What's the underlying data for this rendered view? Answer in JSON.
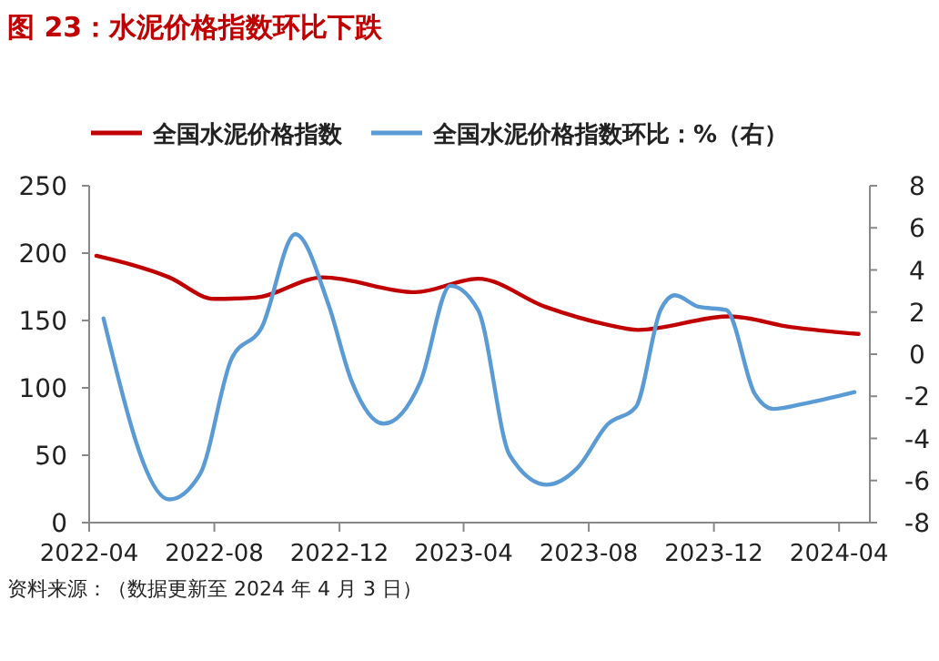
{
  "chart_data": {
    "type": "line",
    "title": "图 23：水泥价格指数环比下跌",
    "annotations": [
      "资料来源：（数据更新至 2024 年 4 月 3 日）"
    ],
    "xlim": [
      "2022-04-01",
      "2024-05-01"
    ],
    "xticks": [
      {
        "value": "2022-04",
        "label": "2022-04"
      },
      {
        "value": "2022-08",
        "label": "2022-08"
      },
      {
        "value": "2022-12",
        "label": "2022-12"
      },
      {
        "value": "2023-04",
        "label": "2023-04"
      },
      {
        "value": "2023-08",
        "label": "2023-08"
      },
      {
        "value": "2023-12",
        "label": "2023-12"
      },
      {
        "value": "2024-04",
        "label": "2024-04"
      }
    ],
    "ylim": [
      0,
      250
    ],
    "yticks": [
      0,
      50,
      100,
      150,
      200,
      250
    ],
    "y2lim": [
      -8,
      8
    ],
    "y2ticks": [
      -8,
      -6,
      -4,
      -2,
      0,
      2,
      4,
      6,
      8
    ],
    "legend": "top",
    "grid": false,
    "marker": "none",
    "line_style": "solid",
    "series": [
      {
        "name": "全国水泥价格指数",
        "color": "#c00000",
        "x": [
          "2022-04-08",
          "2022-06-18",
          "2022-08-01",
          "2022-09-10",
          "2022-11-15",
          "2023-02-13",
          "2023-04-15",
          "2023-06-20",
          "2023-08-18",
          "2023-09-18",
          "2023-12-16",
          "2024-02-15",
          "2024-04-20"
        ],
        "values": [
          198,
          182,
          166,
          167,
          182,
          171,
          181,
          160,
          147,
          143,
          153,
          145,
          140
        ]
      },
      {
        "name": "全国水泥价格指数环比：%（右）",
        "color": "#5b9bd5",
        "axis": "y2",
        "x": [
          "2022-04-15",
          "2022-06-18",
          "2022-07-18",
          "2022-08-18",
          "2022-09-16",
          "2022-10-19",
          "2022-11-20",
          "2022-12-13",
          "2023-01-13",
          "2023-02-18",
          "2023-03-19",
          "2023-04-15",
          "2023-05-16",
          "2023-06-21",
          "2023-07-21",
          "2023-08-19",
          "2023-09-16",
          "2023-10-10",
          "2023-10-24",
          "2023-11-16",
          "2023-12-13",
          "2024-01-10",
          "2024-01-28",
          "2024-02-27",
          "2024-04-16"
        ],
        "values": [
          1.7,
          -6.9,
          -5.7,
          -0.2,
          1.25,
          5.7,
          2.4,
          -1.3,
          -3.3,
          -1.3,
          3.25,
          2.1,
          -4.8,
          -6.2,
          -5.4,
          -3.35,
          -2.5,
          2.1,
          2.8,
          2.25,
          2.1,
          -1.9,
          -2.6,
          -2.35,
          -1.8
        ]
      }
    ]
  }
}
